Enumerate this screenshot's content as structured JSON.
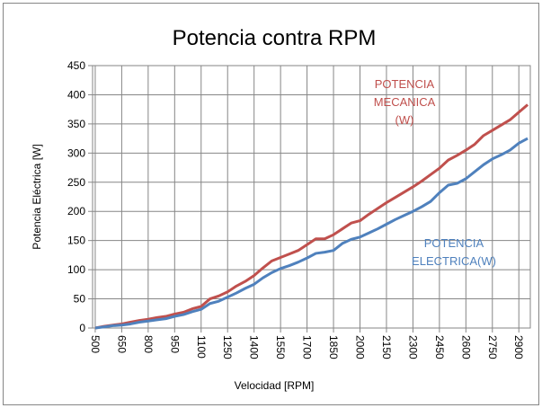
{
  "chart_data": {
    "type": "line",
    "title": "Potencia contra RPM",
    "xlabel": "Velocidad [RPM]",
    "ylabel": "Potencia Eléctrica [W]",
    "x": [
      500,
      550,
      600,
      650,
      700,
      750,
      800,
      850,
      900,
      950,
      1000,
      1050,
      1100,
      1150,
      1200,
      1250,
      1300,
      1350,
      1400,
      1450,
      1500,
      1550,
      1600,
      1650,
      1700,
      1750,
      1800,
      1850,
      1900,
      1950,
      2000,
      2050,
      2100,
      2150,
      2200,
      2250,
      2300,
      2350,
      2400,
      2450,
      2500,
      2550,
      2600,
      2650,
      2700,
      2750,
      2800,
      2850,
      2900,
      2950
    ],
    "series": [
      {
        "name": "POTENCIA MECANICA (W)",
        "color": "#c0504d",
        "values": [
          0,
          3,
          5,
          7,
          10,
          13,
          15,
          18,
          20,
          24,
          27,
          33,
          37,
          50,
          55,
          62,
          72,
          80,
          90,
          103,
          115,
          121,
          127,
          133,
          143,
          153,
          153,
          160,
          170,
          180,
          184,
          195,
          205,
          215,
          224,
          233,
          242,
          252,
          263,
          274,
          288,
          296,
          305,
          315,
          330,
          339,
          348,
          357,
          370,
          383
        ]
      },
      {
        "name": "POTENCIA ELECTRICA(W)",
        "color": "#4f81bd",
        "values": [
          0,
          2,
          4,
          5,
          7,
          10,
          12,
          14,
          16,
          20,
          23,
          28,
          32,
          42,
          46,
          53,
          60,
          68,
          75,
          86,
          95,
          102,
          107,
          113,
          120,
          128,
          130,
          133,
          145,
          152,
          156,
          163,
          170,
          178,
          186,
          193,
          200,
          208,
          217,
          232,
          245,
          248,
          256,
          268,
          280,
          290,
          297,
          305,
          317,
          325
        ]
      }
    ],
    "annotations": [
      {
        "text": [
          "POTENCIA",
          "MECANICA",
          "(W)"
        ],
        "color": "#c0504d"
      },
      {
        "text": [
          "POTENCIA",
          "ELECTRICA(W)"
        ],
        "color": "#4f81bd"
      }
    ],
    "xlim": [
      485,
      2965
    ],
    "xticks": [
      500,
      650,
      800,
      950,
      1100,
      1250,
      1400,
      1550,
      1700,
      1850,
      2000,
      2150,
      2300,
      2450,
      2600,
      2750,
      2900
    ],
    "ylim": [
      0,
      450
    ],
    "yticks": [
      0,
      50,
      100,
      150,
      200,
      250,
      300,
      350,
      400,
      450
    ],
    "grid": true
  }
}
